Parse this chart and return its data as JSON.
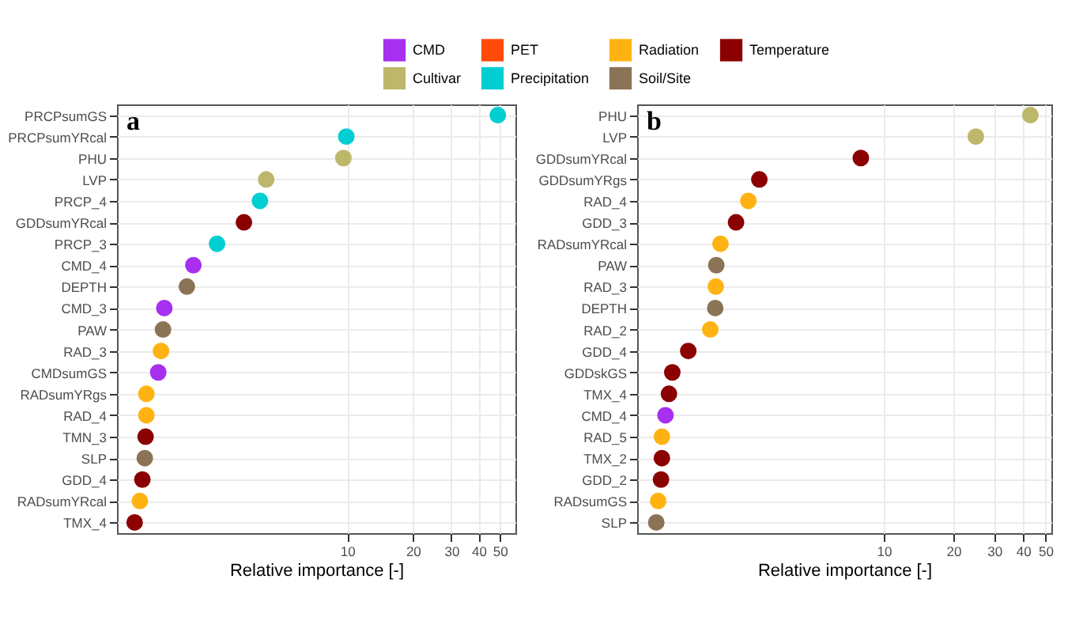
{
  "chart_data": [
    {
      "type": "scatter",
      "orientation": "horizontal",
      "xlabel": "Relative importance [-]",
      "annotations": [
        "a"
      ],
      "log": "x",
      "grid": true,
      "legend": "top",
      "marker": "circle",
      "xlim": [
        0.88,
        59
      ],
      "xticks": [
        10,
        20,
        30,
        40,
        50
      ],
      "categories": [
        "PRCPsumGS",
        "PRCPsumYRcal",
        "PHU",
        "LVP",
        "PRCP_4",
        "GDDsumYRcal",
        "PRCP_3",
        "CMD_4",
        "DEPTH",
        "CMD_3",
        "PAW",
        "RAD_3",
        "CMDsumGS",
        "RADsumYRgs",
        "RAD_4",
        "TMN_3",
        "SLP",
        "GDD_4",
        "RADsumYRcal",
        "TMX_4"
      ],
      "series": [
        {
          "name": "CMD",
          "color": "#a62ff0",
          "values": [
            null,
            null,
            null,
            null,
            null,
            null,
            null,
            1.97,
            null,
            1.45,
            null,
            null,
            1.36,
            null,
            null,
            null,
            null,
            null,
            null,
            null
          ]
        },
        {
          "name": "PET",
          "color": "#ff4a0a",
          "values": [
            null,
            null,
            null,
            null,
            null,
            null,
            null,
            null,
            null,
            null,
            null,
            null,
            null,
            null,
            null,
            null,
            null,
            null,
            null,
            null
          ]
        },
        {
          "name": "Radiation",
          "color": "#ffb312",
          "values": [
            null,
            null,
            null,
            null,
            null,
            null,
            null,
            null,
            null,
            null,
            null,
            1.4,
            null,
            1.2,
            1.2,
            null,
            null,
            null,
            1.12,
            null
          ]
        },
        {
          "name": "Temperature",
          "color": "#8b0000",
          "values": [
            null,
            null,
            null,
            null,
            null,
            3.36,
            null,
            null,
            null,
            null,
            null,
            null,
            null,
            null,
            null,
            1.19,
            null,
            1.15,
            null,
            1.06
          ]
        },
        {
          "name": "Cultivar",
          "color": "#bdb76b",
          "values": [
            null,
            null,
            9.6,
            4.25,
            null,
            null,
            null,
            null,
            null,
            null,
            null,
            null,
            null,
            null,
            null,
            null,
            null,
            null,
            null,
            null
          ]
        },
        {
          "name": "Precipitation",
          "color": "#00ced1",
          "values": [
            49,
            9.9,
            null,
            null,
            3.98,
            null,
            2.53,
            null,
            null,
            null,
            null,
            null,
            null,
            null,
            null,
            null,
            null,
            null,
            null,
            null
          ]
        },
        {
          "name": "Soil/Site",
          "color": "#8b7355",
          "values": [
            null,
            null,
            null,
            null,
            null,
            null,
            null,
            null,
            1.84,
            null,
            1.43,
            null,
            null,
            null,
            null,
            null,
            1.18,
            null,
            null,
            null
          ]
        }
      ]
    },
    {
      "type": "scatter",
      "orientation": "horizontal",
      "xlabel": "Relative importance [-]",
      "annotations": [
        "b"
      ],
      "log": "x",
      "grid": true,
      "marker": "circle",
      "xlim": [
        0.86,
        53
      ],
      "xticks": [
        10,
        20,
        30,
        40,
        50
      ],
      "categories": [
        "PHU",
        "LVP",
        "GDDsumYRcal",
        "GDDsumYRgs",
        "RAD_4",
        "GDD_3",
        "RADsumYRcal",
        "PAW",
        "RAD_3",
        "DEPTH",
        "RAD_2",
        "GDD_4",
        "GDDskGS",
        "TMX_4",
        "CMD_4",
        "RAD_5",
        "TMX_2",
        "GDD_2",
        "RADsumGS",
        "SLP"
      ],
      "series": [
        {
          "name": "CMD",
          "color": "#a62ff0",
          "values": [
            null,
            null,
            null,
            null,
            null,
            null,
            null,
            null,
            null,
            null,
            null,
            null,
            null,
            null,
            1.14,
            null,
            null,
            null,
            null,
            null
          ]
        },
        {
          "name": "Radiation",
          "color": "#ffb312",
          "values": [
            null,
            null,
            null,
            null,
            2.6,
            null,
            1.97,
            null,
            1.88,
            null,
            1.78,
            null,
            null,
            null,
            null,
            1.1,
            null,
            null,
            1.06,
            null
          ]
        },
        {
          "name": "Temperature",
          "color": "#8b0000",
          "values": [
            null,
            null,
            7.96,
            2.9,
            null,
            2.3,
            null,
            null,
            null,
            null,
            null,
            1.43,
            1.22,
            1.18,
            null,
            null,
            1.1,
            1.09,
            null,
            null
          ]
        },
        {
          "name": "Cultivar",
          "color": "#bdb76b",
          "values": [
            43,
            25,
            null,
            null,
            null,
            null,
            null,
            null,
            null,
            null,
            null,
            null,
            null,
            null,
            null,
            null,
            null,
            null,
            null,
            null
          ]
        },
        {
          "name": "Soil/Site",
          "color": "#8b7355",
          "values": [
            null,
            null,
            null,
            null,
            null,
            null,
            null,
            1.89,
            null,
            1.87,
            null,
            null,
            null,
            null,
            null,
            null,
            null,
            null,
            null,
            1.04
          ]
        }
      ]
    }
  ]
}
